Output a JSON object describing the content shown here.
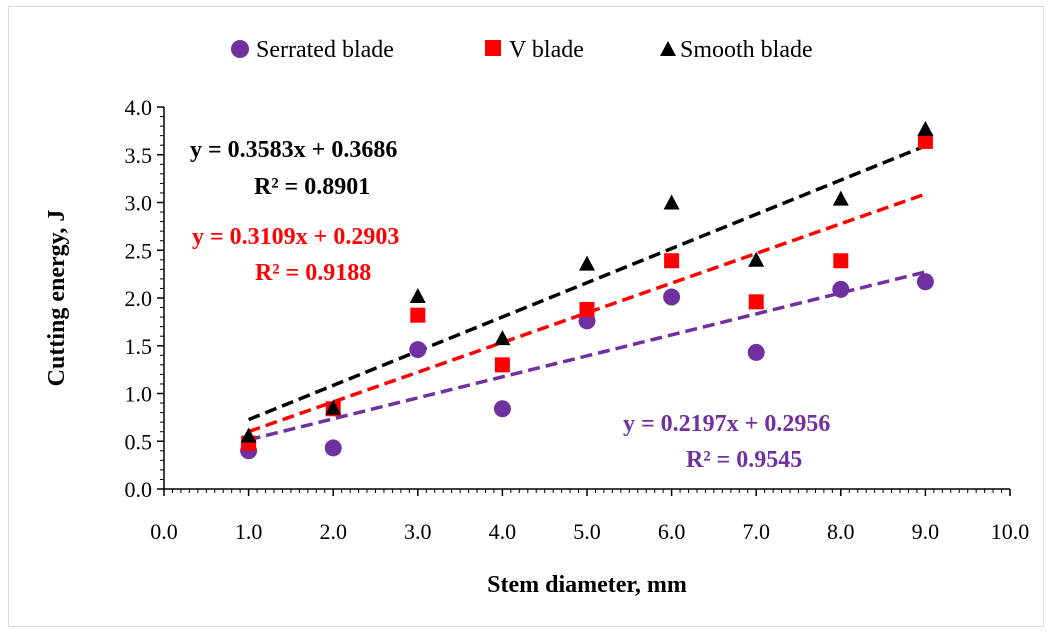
{
  "chart_data": {
    "type": "scatter",
    "xlabel": "Stem diameter, mm",
    "ylabel": "Cutting energy, J",
    "xlim": [
      0,
      10
    ],
    "ylim": [
      0,
      4
    ],
    "x_ticks": [
      "0.0",
      "1.0",
      "2.0",
      "3.0",
      "4.0",
      "5.0",
      "6.0",
      "7.0",
      "8.0",
      "9.0",
      "10.0"
    ],
    "y_ticks": [
      "0.0",
      "0.5",
      "1.0",
      "1.5",
      "2.0",
      "2.5",
      "3.0",
      "3.5",
      "4.0"
    ],
    "grid": false,
    "legend_position": "top",
    "series": [
      {
        "name": "Serrated blade",
        "marker": "circle",
        "color": "#7030a0",
        "x": [
          1,
          2,
          3,
          4,
          5,
          6,
          7,
          8,
          9
        ],
        "y": [
          0.4,
          0.43,
          1.46,
          0.84,
          1.76,
          2.01,
          1.43,
          2.09,
          2.17
        ],
        "trendline": {
          "slope": 0.2197,
          "intercept": 0.2956,
          "equation": "y = 0.2197x + 0.2956",
          "r2": "R² = 0.9545"
        }
      },
      {
        "name": "V blade",
        "marker": "square",
        "color": "#ff0000",
        "x": [
          1,
          2,
          3,
          4,
          5,
          6,
          7,
          8,
          9
        ],
        "y": [
          0.48,
          0.84,
          1.82,
          1.3,
          1.88,
          2.39,
          1.96,
          2.39,
          3.64
        ],
        "trendline": {
          "slope": 0.3109,
          "intercept": 0.2903,
          "equation": "y = 0.3109x + 0.2903",
          "r2": "R² = 0.9188"
        }
      },
      {
        "name": "Smooth blade",
        "marker": "triangle",
        "color": "#000000",
        "x": [
          1,
          2,
          3,
          4,
          5,
          6,
          7,
          8,
          9
        ],
        "y": [
          0.55,
          0.84,
          2.01,
          1.57,
          2.35,
          2.99,
          2.39,
          3.03,
          3.76
        ],
        "trendline": {
          "slope": 0.3583,
          "intercept": 0.3686,
          "equation": "y = 0.3583x + 0.3686",
          "r2": "R² = 0.8901"
        }
      }
    ]
  }
}
